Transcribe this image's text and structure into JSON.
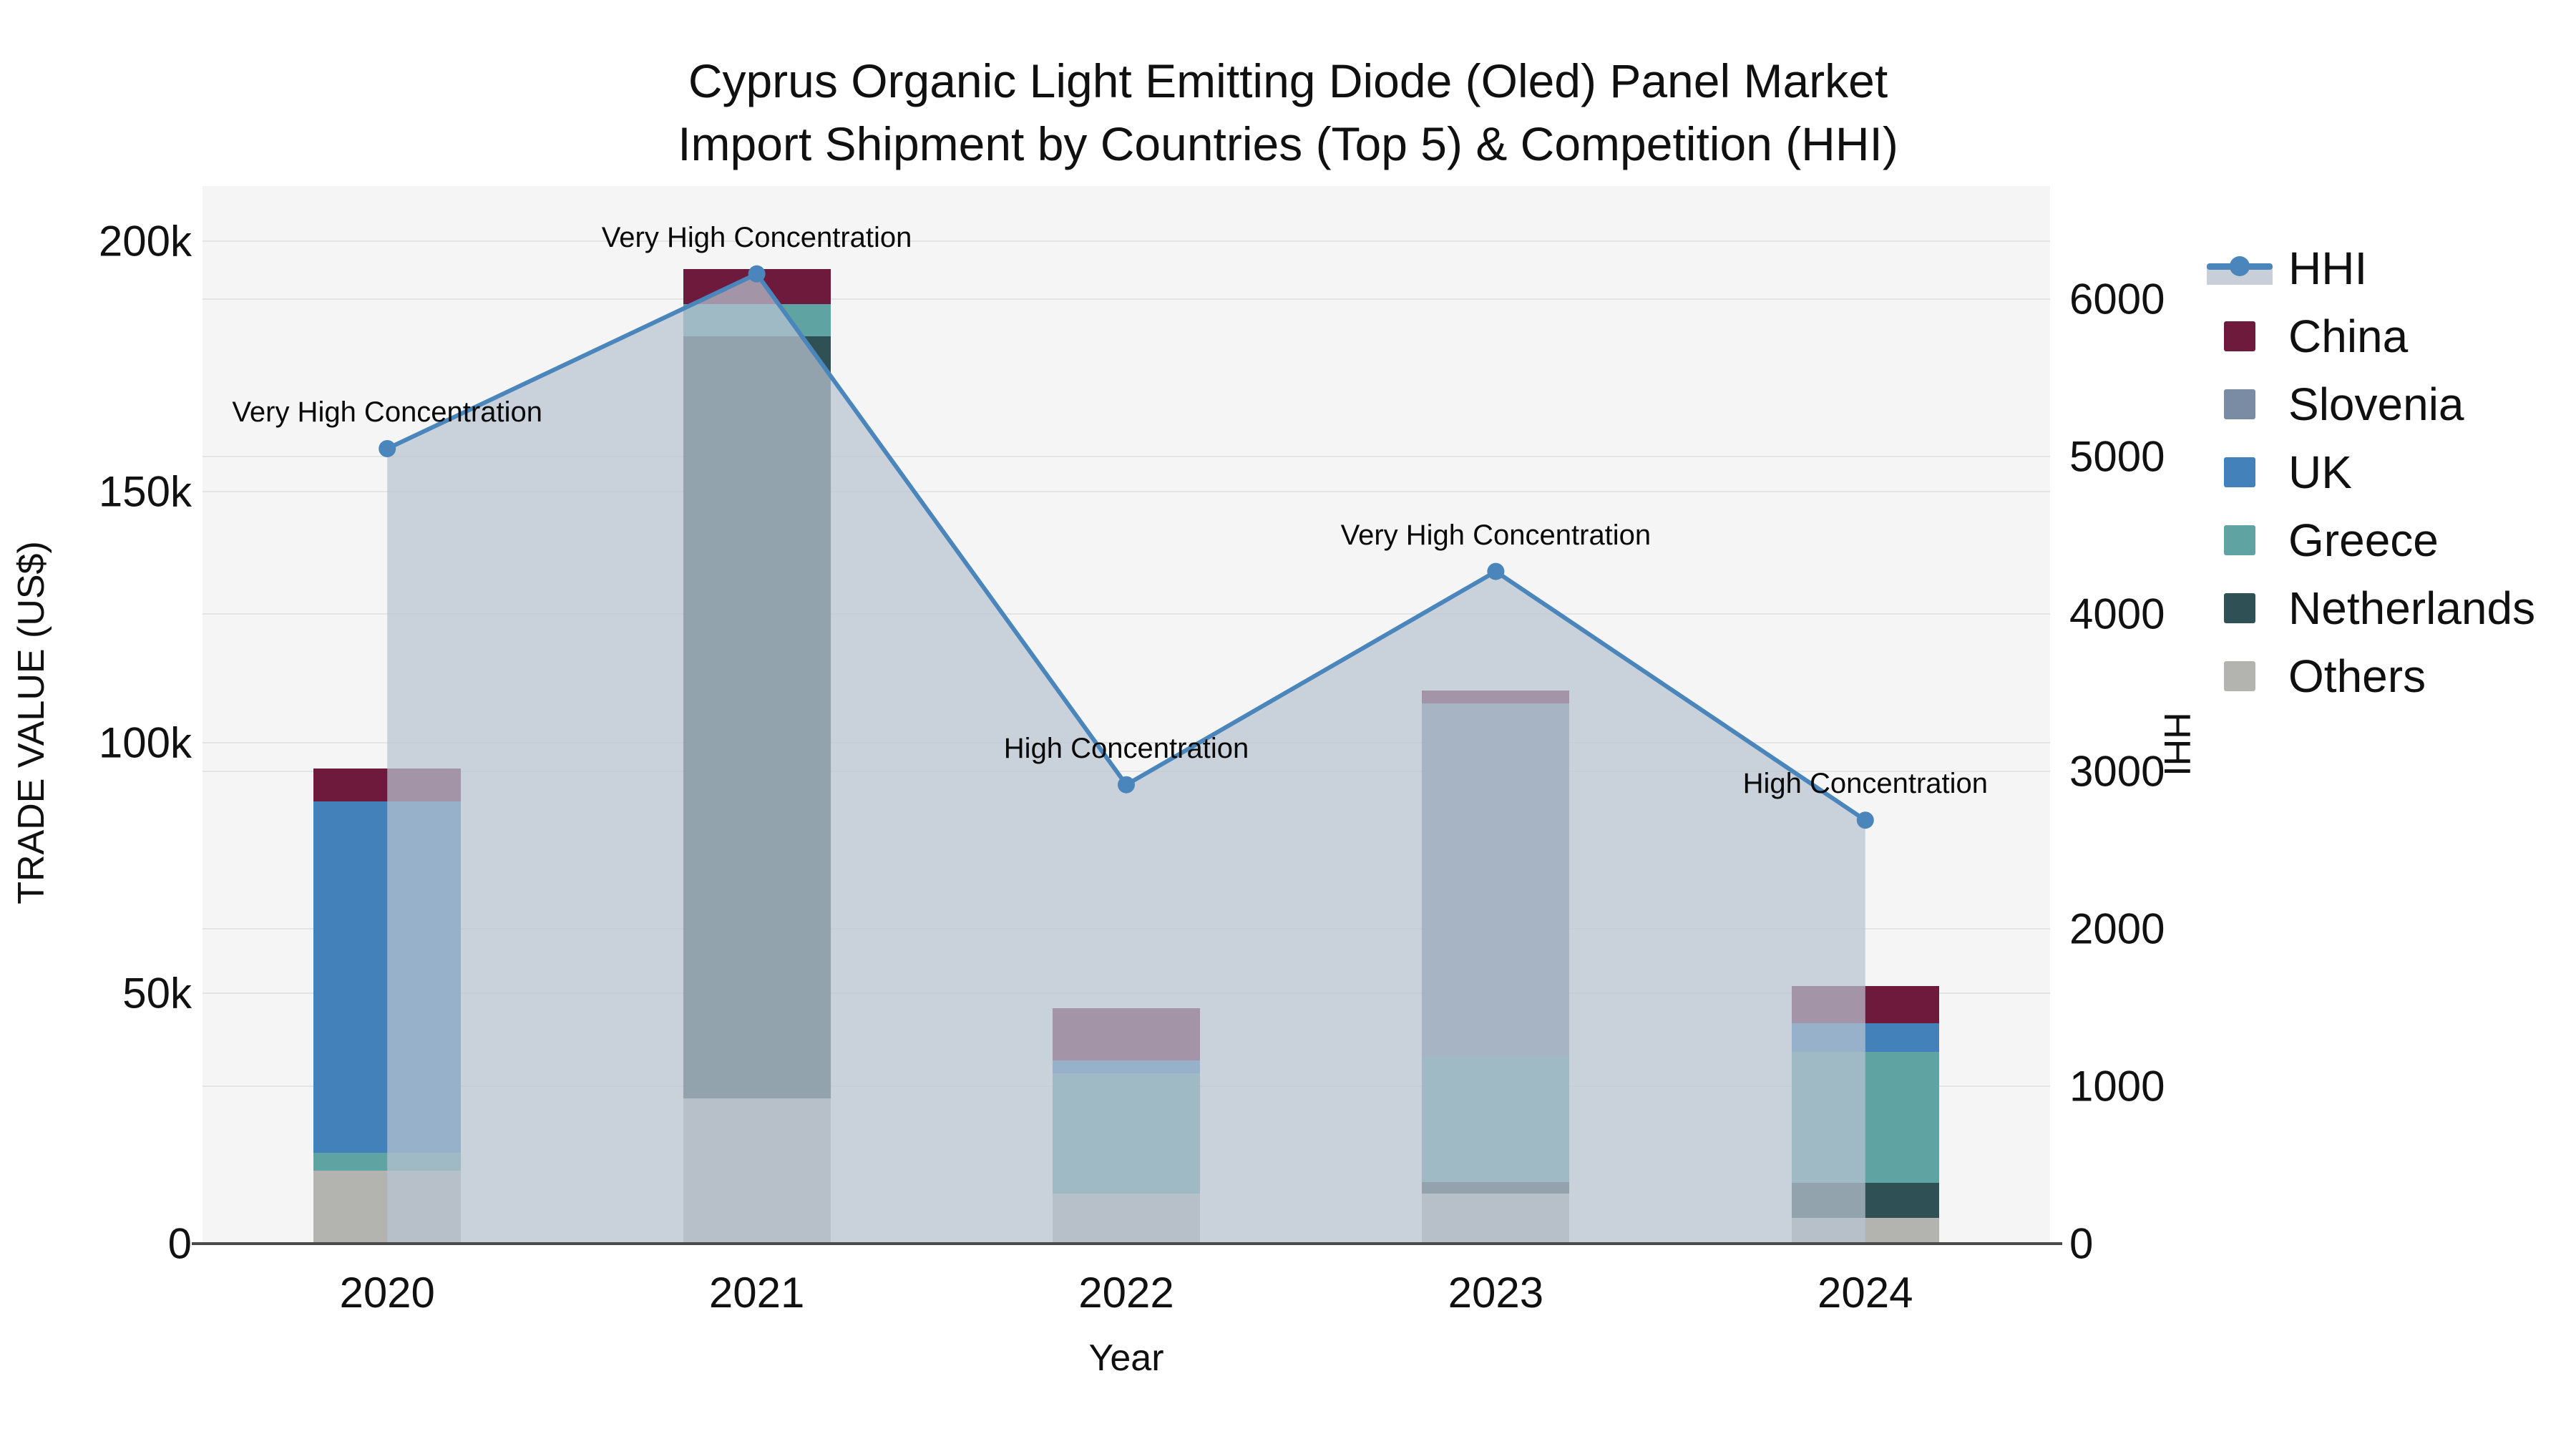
{
  "title": {
    "line1": "Cyprus Organic Light Emitting Diode (Oled) Panel Market",
    "line2": "Import Shipment by Countries (Top 5) & Competition (HHI)"
  },
  "axes": {
    "x": {
      "title": "Year",
      "categories": [
        "2020",
        "2021",
        "2022",
        "2023",
        "2024"
      ]
    },
    "y_left": {
      "title": "TRADE VALUE (US$)",
      "tick_labels": [
        "0",
        "50k",
        "100k",
        "150k",
        "200k"
      ],
      "tick_values": [
        0,
        50000,
        100000,
        150000,
        200000
      ],
      "max": 200000
    },
    "y_right": {
      "title": "HHI",
      "tick_labels": [
        "0",
        "1000",
        "2000",
        "3000",
        "4000",
        "5000",
        "6000"
      ],
      "tick_values": [
        0,
        1000,
        2000,
        3000,
        4000,
        5000,
        6000
      ],
      "max": 6000
    }
  },
  "legend": {
    "items": [
      {
        "label": "HHI",
        "type": "line",
        "color": "#4a86bb",
        "band_color": "#c9cfd8"
      },
      {
        "label": "China",
        "type": "swatch",
        "color": "#6d1a3d"
      },
      {
        "label": "Slovenia",
        "type": "swatch",
        "color": "#7a8ca3"
      },
      {
        "label": "UK",
        "type": "swatch",
        "color": "#4381bb"
      },
      {
        "label": "Greece",
        "type": "swatch",
        "color": "#5fa3a2"
      },
      {
        "label": "Netherlands",
        "type": "swatch",
        "color": "#2f5054"
      },
      {
        "label": "Others",
        "type": "swatch",
        "color": "#b3b3b0"
      }
    ]
  },
  "chart_data": {
    "type": "bar",
    "subtype": "stacked-bars-with-line",
    "title": "Cyprus Organic Light Emitting Diode (Oled) Panel Market Import Shipment by Countries (Top 5) & Competition (HHI)",
    "xlabel": "Year",
    "ylabel_left": "TRADE VALUE (US$)",
    "ylabel_right": "HHI",
    "ylim_left": [
      0,
      200000
    ],
    "ylim_right": [
      0,
      6000
    ],
    "grid": true,
    "legend_position": "right",
    "categories": [
      "2020",
      "2021",
      "2022",
      "2023",
      "2024"
    ],
    "series": [
      {
        "name": "Others",
        "color": "#b3b3b0",
        "values": [
          14500,
          29000,
          10000,
          10000,
          5200
        ]
      },
      {
        "name": "Netherlands",
        "color": "#2f5054",
        "values": [
          0,
          152000,
          0,
          2300,
          7000
        ]
      },
      {
        "name": "Greece",
        "color": "#5fa3a2",
        "values": [
          3700,
          6500,
          24000,
          25000,
          26000
        ]
      },
      {
        "name": "UK",
        "color": "#4381bb",
        "values": [
          70000,
          0,
          2600,
          0,
          5800
        ]
      },
      {
        "name": "Slovenia",
        "color": "#7a8ca3",
        "values": [
          0,
          0,
          0,
          70500,
          0
        ]
      },
      {
        "name": "China",
        "color": "#6d1a3d",
        "values": [
          6600,
          7000,
          10300,
          2500,
          7400
        ]
      }
    ],
    "line_series": {
      "name": "HHI",
      "color": "#4a86bb",
      "area_color": "rgba(184,195,209,0.72)",
      "values": [
        5050,
        6160,
        2915,
        4270,
        2690
      ]
    },
    "annotations": [
      {
        "category": "2020",
        "text": "Very High Concentration"
      },
      {
        "category": "2021",
        "text": "Very High Concentration"
      },
      {
        "category": "2022",
        "text": "High Concentration"
      },
      {
        "category": "2023",
        "text": "Very High Concentration"
      },
      {
        "category": "2024",
        "text": "High Concentration"
      }
    ]
  },
  "colors": {
    "plot_background": "#f5f5f5",
    "page_background": "#ffffff",
    "gridline": "#e4e4e4",
    "axis_line": "#4a4a4a",
    "text": "#101010"
  }
}
